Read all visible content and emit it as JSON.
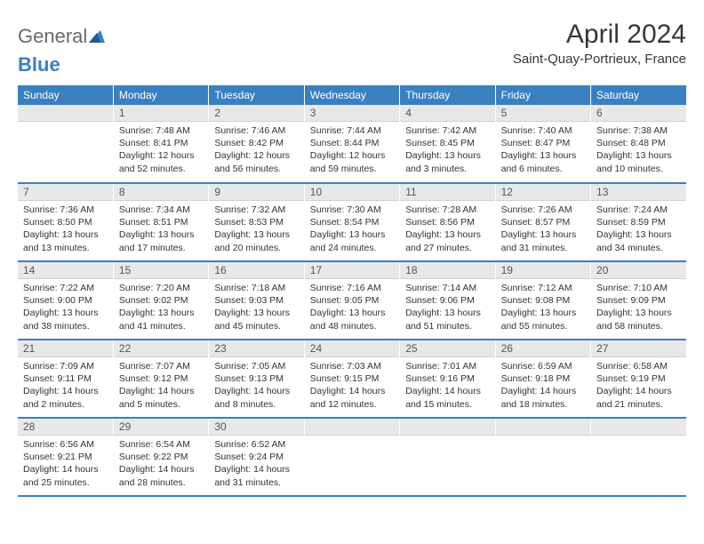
{
  "logo": {
    "part1": "General",
    "part2": "Blue"
  },
  "title": "April 2024",
  "location": "Saint-Quay-Portrieux, France",
  "colors": {
    "header_bg": "#3a80c0",
    "header_text": "#ffffff",
    "daynum_bg": "#e8e8e8",
    "row_sep": "#3a80c0",
    "text": "#333333",
    "logo_gray": "#6b6b6b",
    "logo_blue": "#3a80c0"
  },
  "weekdays": [
    "Sunday",
    "Monday",
    "Tuesday",
    "Wednesday",
    "Thursday",
    "Friday",
    "Saturday"
  ],
  "weeks": [
    [
      null,
      {
        "n": "1",
        "sr": "Sunrise: 7:48 AM",
        "ss": "Sunset: 8:41 PM",
        "dl": "Daylight: 12 hours and 52 minutes."
      },
      {
        "n": "2",
        "sr": "Sunrise: 7:46 AM",
        "ss": "Sunset: 8:42 PM",
        "dl": "Daylight: 12 hours and 56 minutes."
      },
      {
        "n": "3",
        "sr": "Sunrise: 7:44 AM",
        "ss": "Sunset: 8:44 PM",
        "dl": "Daylight: 12 hours and 59 minutes."
      },
      {
        "n": "4",
        "sr": "Sunrise: 7:42 AM",
        "ss": "Sunset: 8:45 PM",
        "dl": "Daylight: 13 hours and 3 minutes."
      },
      {
        "n": "5",
        "sr": "Sunrise: 7:40 AM",
        "ss": "Sunset: 8:47 PM",
        "dl": "Daylight: 13 hours and 6 minutes."
      },
      {
        "n": "6",
        "sr": "Sunrise: 7:38 AM",
        "ss": "Sunset: 8:48 PM",
        "dl": "Daylight: 13 hours and 10 minutes."
      }
    ],
    [
      {
        "n": "7",
        "sr": "Sunrise: 7:36 AM",
        "ss": "Sunset: 8:50 PM",
        "dl": "Daylight: 13 hours and 13 minutes."
      },
      {
        "n": "8",
        "sr": "Sunrise: 7:34 AM",
        "ss": "Sunset: 8:51 PM",
        "dl": "Daylight: 13 hours and 17 minutes."
      },
      {
        "n": "9",
        "sr": "Sunrise: 7:32 AM",
        "ss": "Sunset: 8:53 PM",
        "dl": "Daylight: 13 hours and 20 minutes."
      },
      {
        "n": "10",
        "sr": "Sunrise: 7:30 AM",
        "ss": "Sunset: 8:54 PM",
        "dl": "Daylight: 13 hours and 24 minutes."
      },
      {
        "n": "11",
        "sr": "Sunrise: 7:28 AM",
        "ss": "Sunset: 8:56 PM",
        "dl": "Daylight: 13 hours and 27 minutes."
      },
      {
        "n": "12",
        "sr": "Sunrise: 7:26 AM",
        "ss": "Sunset: 8:57 PM",
        "dl": "Daylight: 13 hours and 31 minutes."
      },
      {
        "n": "13",
        "sr": "Sunrise: 7:24 AM",
        "ss": "Sunset: 8:59 PM",
        "dl": "Daylight: 13 hours and 34 minutes."
      }
    ],
    [
      {
        "n": "14",
        "sr": "Sunrise: 7:22 AM",
        "ss": "Sunset: 9:00 PM",
        "dl": "Daylight: 13 hours and 38 minutes."
      },
      {
        "n": "15",
        "sr": "Sunrise: 7:20 AM",
        "ss": "Sunset: 9:02 PM",
        "dl": "Daylight: 13 hours and 41 minutes."
      },
      {
        "n": "16",
        "sr": "Sunrise: 7:18 AM",
        "ss": "Sunset: 9:03 PM",
        "dl": "Daylight: 13 hours and 45 minutes."
      },
      {
        "n": "17",
        "sr": "Sunrise: 7:16 AM",
        "ss": "Sunset: 9:05 PM",
        "dl": "Daylight: 13 hours and 48 minutes."
      },
      {
        "n": "18",
        "sr": "Sunrise: 7:14 AM",
        "ss": "Sunset: 9:06 PM",
        "dl": "Daylight: 13 hours and 51 minutes."
      },
      {
        "n": "19",
        "sr": "Sunrise: 7:12 AM",
        "ss": "Sunset: 9:08 PM",
        "dl": "Daylight: 13 hours and 55 minutes."
      },
      {
        "n": "20",
        "sr": "Sunrise: 7:10 AM",
        "ss": "Sunset: 9:09 PM",
        "dl": "Daylight: 13 hours and 58 minutes."
      }
    ],
    [
      {
        "n": "21",
        "sr": "Sunrise: 7:09 AM",
        "ss": "Sunset: 9:11 PM",
        "dl": "Daylight: 14 hours and 2 minutes."
      },
      {
        "n": "22",
        "sr": "Sunrise: 7:07 AM",
        "ss": "Sunset: 9:12 PM",
        "dl": "Daylight: 14 hours and 5 minutes."
      },
      {
        "n": "23",
        "sr": "Sunrise: 7:05 AM",
        "ss": "Sunset: 9:13 PM",
        "dl": "Daylight: 14 hours and 8 minutes."
      },
      {
        "n": "24",
        "sr": "Sunrise: 7:03 AM",
        "ss": "Sunset: 9:15 PM",
        "dl": "Daylight: 14 hours and 12 minutes."
      },
      {
        "n": "25",
        "sr": "Sunrise: 7:01 AM",
        "ss": "Sunset: 9:16 PM",
        "dl": "Daylight: 14 hours and 15 minutes."
      },
      {
        "n": "26",
        "sr": "Sunrise: 6:59 AM",
        "ss": "Sunset: 9:18 PM",
        "dl": "Daylight: 14 hours and 18 minutes."
      },
      {
        "n": "27",
        "sr": "Sunrise: 6:58 AM",
        "ss": "Sunset: 9:19 PM",
        "dl": "Daylight: 14 hours and 21 minutes."
      }
    ],
    [
      {
        "n": "28",
        "sr": "Sunrise: 6:56 AM",
        "ss": "Sunset: 9:21 PM",
        "dl": "Daylight: 14 hours and 25 minutes."
      },
      {
        "n": "29",
        "sr": "Sunrise: 6:54 AM",
        "ss": "Sunset: 9:22 PM",
        "dl": "Daylight: 14 hours and 28 minutes."
      },
      {
        "n": "30",
        "sr": "Sunrise: 6:52 AM",
        "ss": "Sunset: 9:24 PM",
        "dl": "Daylight: 14 hours and 31 minutes."
      },
      null,
      null,
      null,
      null
    ]
  ]
}
